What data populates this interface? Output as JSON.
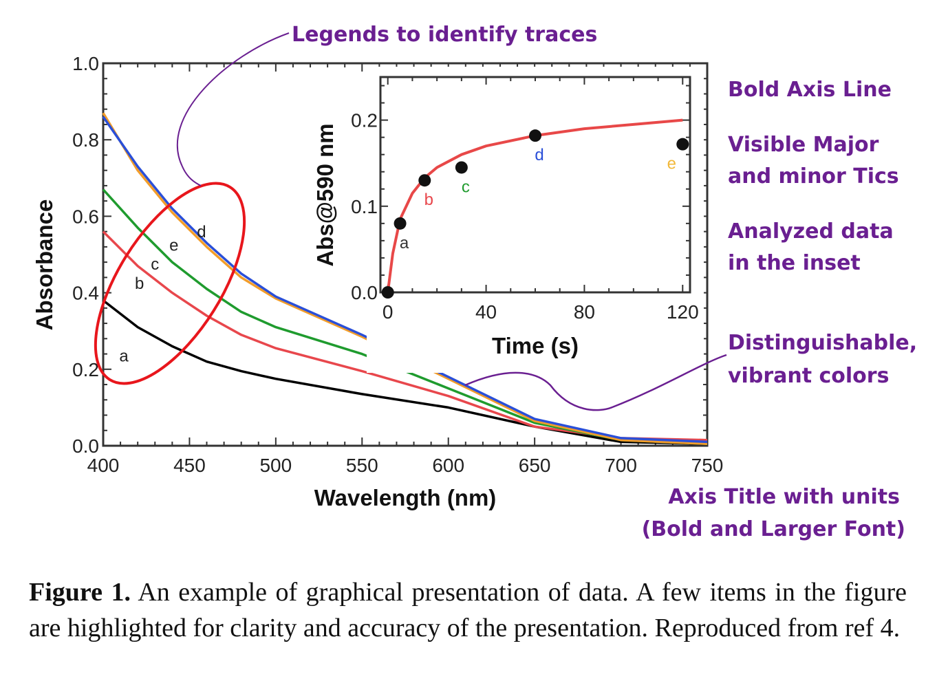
{
  "chart_data": [
    {
      "type": "line",
      "xlabel": "Wavelength (nm)",
      "ylabel": "Absorbance",
      "xlim": [
        400,
        750
      ],
      "ylim": [
        0,
        1.0
      ],
      "x_ticks": [
        400,
        450,
        500,
        550,
        600,
        650,
        700,
        750
      ],
      "y_ticks": [
        "0.0",
        "0.2",
        "0.4",
        "0.6",
        "0.8",
        "1.0"
      ],
      "grid": false,
      "series": [
        {
          "name": "a",
          "color": "#000000",
          "x": [
            400,
            420,
            440,
            460,
            480,
            500,
            550,
            600,
            650,
            700,
            750
          ],
          "y": [
            0.38,
            0.31,
            0.26,
            0.22,
            0.195,
            0.175,
            0.135,
            0.1,
            0.05,
            0.01,
            0.005
          ],
          "label_at": [
            412,
            0.22
          ]
        },
        {
          "name": "b",
          "color": "#e8474c",
          "x": [
            400,
            420,
            440,
            460,
            480,
            500,
            550,
            600,
            650,
            700,
            750
          ],
          "y": [
            0.56,
            0.47,
            0.4,
            0.34,
            0.29,
            0.255,
            0.195,
            0.13,
            0.05,
            0.02,
            0.015
          ],
          "label_at": [
            421,
            0.41
          ]
        },
        {
          "name": "c",
          "color": "#1f9b2e",
          "x": [
            400,
            420,
            440,
            460,
            480,
            500,
            550,
            600,
            650,
            700,
            750
          ],
          "y": [
            0.67,
            0.57,
            0.48,
            0.41,
            0.35,
            0.31,
            0.24,
            0.15,
            0.06,
            0.015,
            0.005
          ],
          "label_at": [
            430,
            0.46
          ]
        },
        {
          "name": "d",
          "color": "#2a4fd8",
          "x": [
            400,
            420,
            440,
            460,
            480,
            500,
            550,
            600,
            650,
            700,
            750
          ],
          "y": [
            0.86,
            0.73,
            0.62,
            0.53,
            0.45,
            0.39,
            0.29,
            0.18,
            0.07,
            0.02,
            0.01
          ],
          "label_at": [
            457,
            0.545
          ]
        },
        {
          "name": "e",
          "color": "#f29d2a",
          "x": [
            400,
            420,
            440,
            460,
            480,
            500,
            550,
            600,
            650,
            700,
            750
          ],
          "y": [
            0.87,
            0.72,
            0.61,
            0.52,
            0.44,
            0.385,
            0.285,
            0.175,
            0.065,
            0.015,
            0.005
          ],
          "label_at": [
            441,
            0.51
          ]
        }
      ]
    },
    {
      "type": "scatter",
      "xlabel": "Time (s)",
      "ylabel": "Abs@590 nm",
      "xlim": [
        -3,
        123
      ],
      "ylim": [
        0,
        0.25
      ],
      "x_ticks": [
        "0",
        "40",
        "80",
        "120"
      ],
      "y_ticks": [
        "0.0",
        "0.1",
        "0.2"
      ],
      "points": {
        "x": [
          0,
          5,
          15,
          30,
          60,
          120
        ],
        "y": [
          0.0,
          0.08,
          0.13,
          0.145,
          0.182,
          0.172
        ],
        "labels": [
          "",
          "a",
          "b",
          "c",
          "d",
          "e"
        ],
        "label_colors": [
          "#000000",
          "#333333",
          "#e8474c",
          "#1f9b2e",
          "#2a4fd8",
          "#f2b83a"
        ]
      },
      "fit_curve": {
        "color": "#e84848",
        "x": [
          0,
          2,
          5,
          10,
          15,
          20,
          30,
          40,
          60,
          80,
          100,
          120
        ],
        "y": [
          0.0,
          0.045,
          0.085,
          0.115,
          0.133,
          0.145,
          0.16,
          0.17,
          0.182,
          0.19,
          0.195,
          0.2
        ]
      }
    }
  ],
  "annotations": {
    "legends": "Legends to identify traces",
    "axis_line": "Bold Axis Line",
    "ticks_1": "Visible Major",
    "ticks_2": "and minor Tics",
    "inset_1": "Analyzed data",
    "inset_2": "in the inset",
    "colors_1": "Distinguishable,",
    "colors_2": "vibrant colors",
    "title_1": "Axis Title with units",
    "title_2": "(Bold and Larger Font)",
    "color": "#6a1f91"
  },
  "caption": {
    "label": "Figure 1.",
    "text": " An example of graphical presentation of data. A few items in the figure are highlighted for clarity and accuracy of the presentation. Reproduced from ref 4."
  }
}
